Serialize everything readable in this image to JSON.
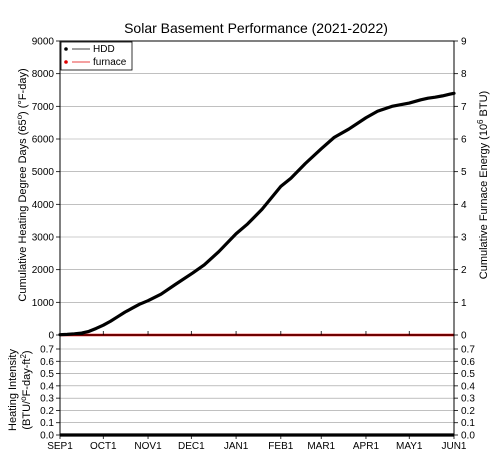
{
  "chart_data": [
    {
      "type": "line",
      "title": "Solar Basement Performance (2021-2022)",
      "ylabel_left": "Cumulative Heating Degree Days (65",
      "ylabel_left_sup": "o",
      "ylabel_left_tail": ") (°F-day)",
      "ylabel_right": "Cumulative Furnace Energy (10",
      "ylabel_right_sup": "6",
      "ylabel_right_tail": " BTU)",
      "ylim_left": [
        0,
        9000
      ],
      "ylim_right": [
        0,
        9
      ],
      "yticks_left": [
        "0",
        "1000",
        "2000",
        "3000",
        "4000",
        "5000",
        "6000",
        "7000",
        "8000",
        "9000"
      ],
      "yticks_right": [
        "0",
        "1",
        "2",
        "3",
        "4",
        "5",
        "6",
        "7",
        "8",
        "9"
      ],
      "xlim": [
        0,
        273
      ],
      "grid": true,
      "legend_position": "top-left",
      "series": [
        {
          "name": "HDD",
          "color": "#000000",
          "axis": "left",
          "x": [
            0,
            5,
            10,
            15,
            20,
            25,
            30,
            35,
            40,
            45,
            50,
            55,
            61,
            70,
            80,
            92,
            100,
            110,
            122,
            130,
            140,
            153,
            160,
            170,
            181,
            190,
            200,
            212,
            220,
            230,
            242,
            250,
            255,
            260,
            265,
            270,
            273
          ],
          "y": [
            10,
            20,
            35,
            60,
            110,
            200,
            300,
            420,
            560,
            700,
            820,
            940,
            1050,
            1250,
            1550,
            1900,
            2150,
            2550,
            3100,
            3400,
            3850,
            4550,
            4800,
            5250,
            5700,
            6050,
            6300,
            6650,
            6850,
            7000,
            7100,
            7200,
            7250,
            7280,
            7320,
            7370,
            7400
          ]
        },
        {
          "name": "furnace",
          "color": "#e00000",
          "axis": "right",
          "x": [
            0,
            273
          ],
          "y": [
            0,
            0
          ]
        }
      ]
    },
    {
      "type": "line",
      "ylabel_line1": "Heating Intensity",
      "ylabel_line2": "(BTU/",
      "ylabel_line2_sup1": "o",
      "ylabel_line2_mid": "F-day-ft",
      "ylabel_line2_sup2": "2",
      "ylabel_line2_tail": ")",
      "ylim": [
        0,
        0.7
      ],
      "yticks": [
        "0.0",
        "0.1",
        "0.2",
        "0.3",
        "0.4",
        "0.5",
        "0.6",
        "0.7"
      ],
      "xticks": [
        {
          "label": "SEP1",
          "x": 0
        },
        {
          "label": "OCT1",
          "x": 30
        },
        {
          "label": "NOV1",
          "x": 61
        },
        {
          "label": "DEC1",
          "x": 91
        },
        {
          "label": "JAN1",
          "x": 122
        },
        {
          "label": "FEB1",
          "x": 153
        },
        {
          "label": "MAR1",
          "x": 181
        },
        {
          "label": "APR1",
          "x": 212
        },
        {
          "label": "MAY1",
          "x": 242
        },
        {
          "label": "JUN1",
          "x": 273
        }
      ],
      "xlim": [
        0,
        273
      ],
      "grid": true,
      "series": [
        {
          "color": "#000000",
          "x": [
            0,
            273
          ],
          "y": [
            0,
            0
          ]
        }
      ]
    }
  ]
}
